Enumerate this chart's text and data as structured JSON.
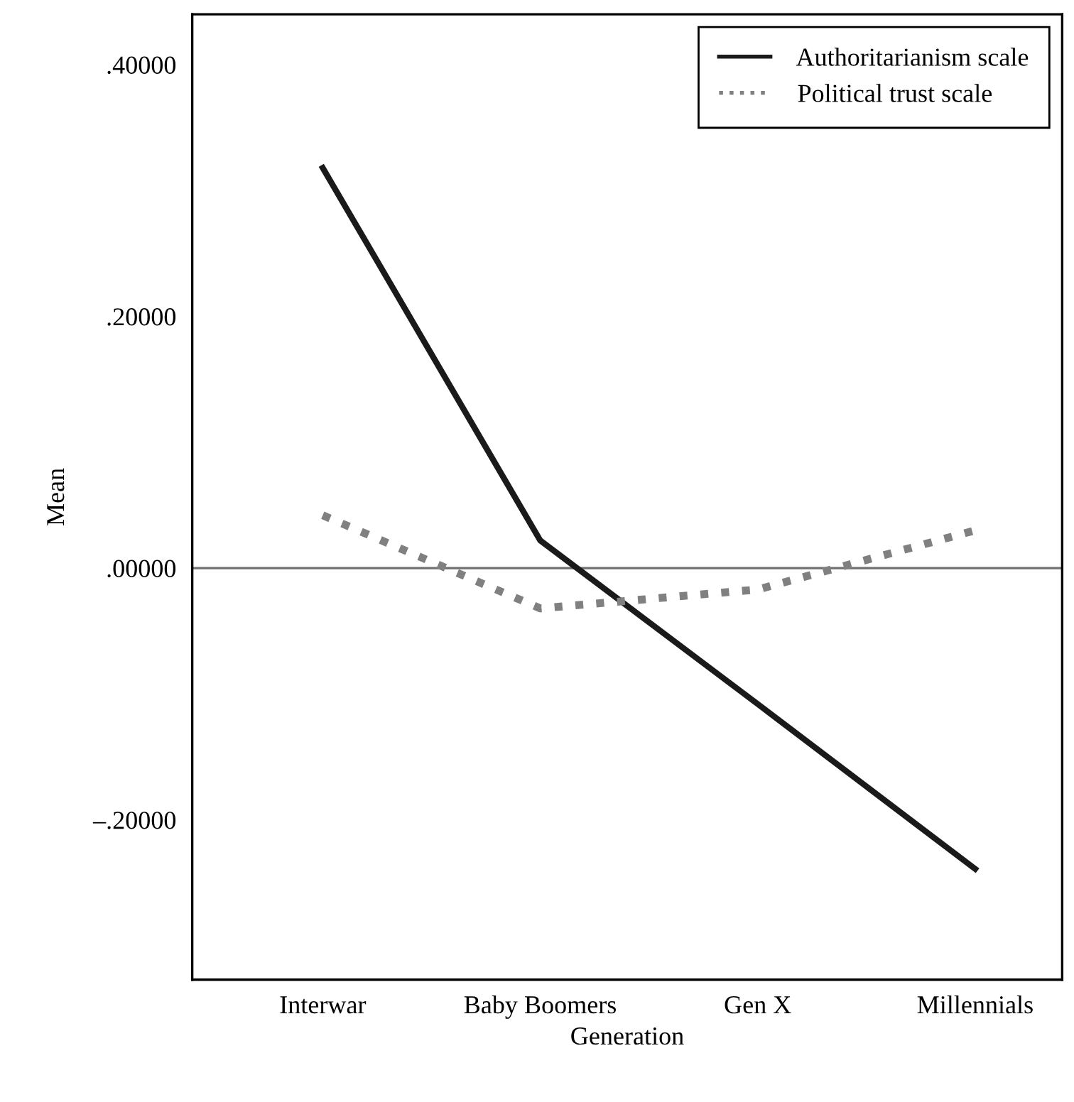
{
  "chart_data": {
    "type": "line",
    "xlabel": "Generation",
    "ylabel": "Mean",
    "categories": [
      "Interwar",
      "Baby Boomers",
      "Gen X",
      "Millennials"
    ],
    "series": [
      {
        "name": "Authoritarianism scale",
        "color": "#1a1a1a",
        "line_style": "solid",
        "values": [
          0.318,
          0.022,
          -0.108,
          -0.239
        ]
      },
      {
        "name": "Political trust scale",
        "color": "#808080",
        "line_style": "dotted",
        "values": [
          0.042,
          -0.032,
          -0.017,
          0.03
        ]
      }
    ],
    "ylim": [
      -0.327,
      0.44
    ],
    "yticks": [
      {
        "value": -0.2,
        "label": "–.20000"
      },
      {
        "value": 0,
        "label": ".00000"
      },
      {
        "value": 0.2,
        "label": ".20000"
      },
      {
        "value": 0.4,
        "label": ".40000"
      }
    ],
    "ref_lines": [
      {
        "axis": "y",
        "value": 0,
        "color": "#707070"
      }
    ],
    "grid": false,
    "legend": "top right",
    "marker": "none"
  }
}
